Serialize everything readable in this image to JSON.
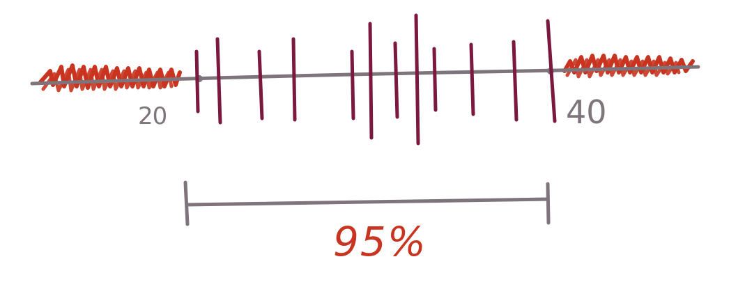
{
  "number_line": {
    "min_label": "20",
    "max_label": "40",
    "min_value": 20,
    "max_value": 40
  },
  "interval": {
    "coverage_label": "95%"
  },
  "colors": {
    "axis": "#7e747b",
    "ticks": "#7a1840",
    "hatch": "#c8341f",
    "coverage_text": "#c8341f",
    "labels": "#7e747b"
  }
}
